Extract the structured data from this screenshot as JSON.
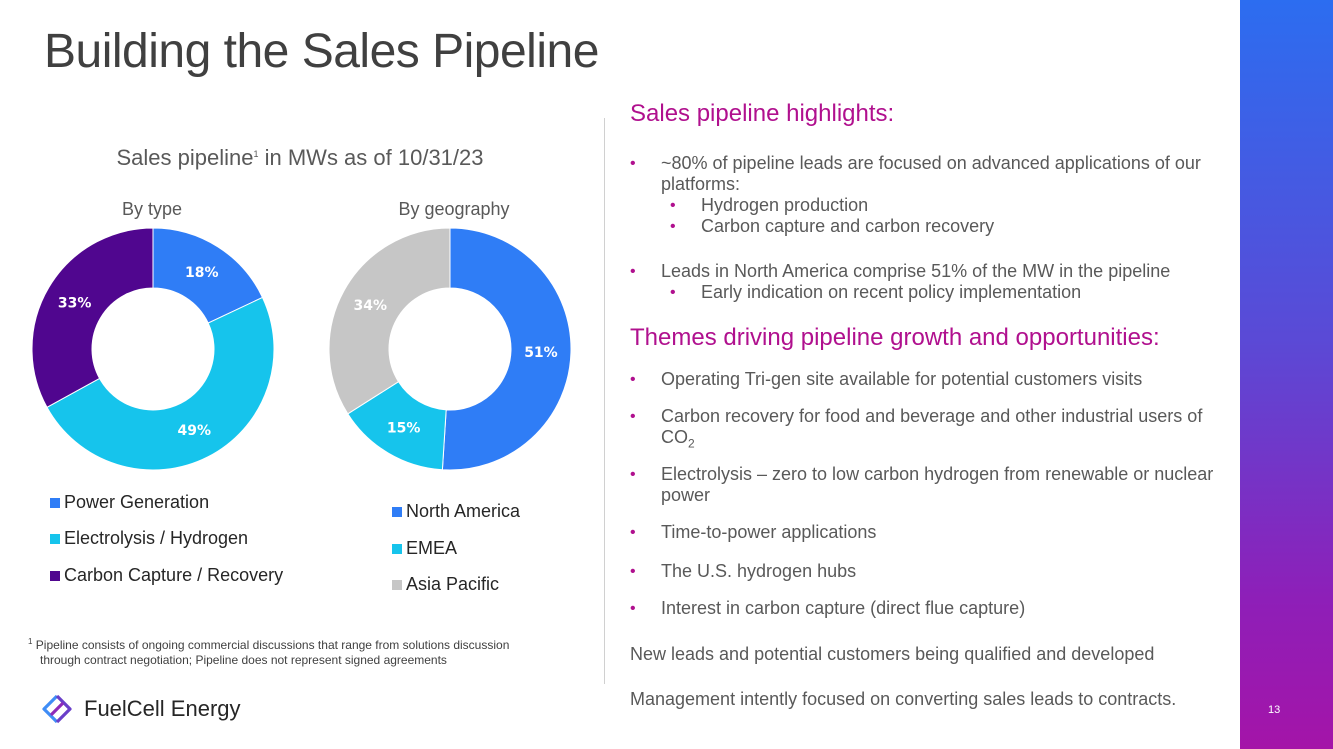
{
  "title": "Building the Sales Pipeline",
  "page_number": "13",
  "colors": {
    "power_generation": "#2f7df6",
    "electrolysis_hydrogen": "#16c4ec",
    "carbon_capture": "#50068f",
    "north_america": "#2f7df6",
    "emea": "#16c4ec",
    "asia_pacific": "#c6c6c6",
    "accent": "#b0108e"
  },
  "chart_section": {
    "title_main": "Sales pipeline",
    "title_sup": "1",
    "title_rest": " in MWs as of 10/31/23"
  },
  "chart_data": [
    {
      "type": "pie",
      "title": "By type",
      "donut": true,
      "slices": [
        {
          "label": "Power Generation",
          "value": 18,
          "display": "18%"
        },
        {
          "label": "Electrolysis / Hydrogen",
          "value": 49,
          "display": "49%"
        },
        {
          "label": "Carbon Capture / Recovery",
          "value": 33,
          "display": "33%"
        }
      ],
      "legend_position": "bottom"
    },
    {
      "type": "pie",
      "title": "By geography",
      "donut": true,
      "slices": [
        {
          "label": "North America",
          "value": 51,
          "display": "51%"
        },
        {
          "label": "EMEA",
          "value": 15,
          "display": "15%"
        },
        {
          "label": "Asia Pacific",
          "value": 34,
          "display": "34%"
        }
      ],
      "legend_position": "bottom"
    }
  ],
  "footnote": {
    "marker": "1",
    "text": "Pipeline consists of ongoing commercial discussions that range from solutions discussion through contract negotiation; Pipeline does not represent signed agreements"
  },
  "logo": {
    "text": "FuelCell Energy",
    "icon": "fuelcell-logo-icon"
  },
  "highlights": {
    "heading": "Sales pipeline highlights:",
    "b1": "~80% of pipeline leads are focused on advanced applications of our platforms:",
    "b1_sub1": "Hydrogen production",
    "b1_sub2": "Carbon capture and carbon recovery",
    "b2": "Leads in North America comprise 51% of the MW in the pipeline",
    "b2_sub1": "Early indication on recent policy implementation"
  },
  "themes": {
    "heading": "Themes driving pipeline growth and opportunities:",
    "t1": "Operating Tri-gen site available for potential customers visits",
    "t2_a": "Carbon recovery for food and beverage and other industrial users of CO",
    "t2_sub": "2",
    "t3": "Electrolysis – zero to low carbon hydrogen from renewable or nuclear power",
    "t4": "Time-to-power applications",
    "t5": "The U.S. hydrogen hubs",
    "t6": "Interest in carbon capture (direct flue capture)"
  },
  "closing": {
    "line1": "New leads and potential customers being qualified and developed",
    "line2": "Management intently focused on converting sales leads to  contracts."
  }
}
